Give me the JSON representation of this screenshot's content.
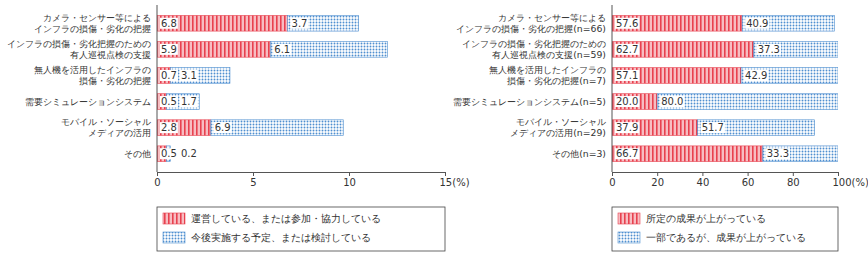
{
  "chart_data": [
    {
      "type": "bar",
      "orientation": "horizontal",
      "stacked": true,
      "data_labels": true,
      "grid": false,
      "legend": "bottom",
      "categories": [
        "カメラ・センサー等による\nインフラの損傷・劣化の把握",
        "インフラの損傷・劣化把握のための\n有人巡視点検の支援",
        "無人機を活用したインフラの\n損傷・劣化の把握",
        "需要シミュレーションシステム",
        "モバイル・ソーシャル\nメディアの活用",
        "その他"
      ],
      "series": [
        {
          "name": "運営している、または参加・協力している",
          "color": "#e8414f",
          "values": [
            6.8,
            5.9,
            0.7,
            0.5,
            2.8,
            0.5
          ]
        },
        {
          "name": "今後実施する予定、または検討している",
          "color": "#4f8fd0",
          "values": [
            3.7,
            6.1,
            3.1,
            1.7,
            6.9,
            0.2
          ]
        }
      ],
      "xlim": [
        0,
        15
      ],
      "xticks": [
        0,
        5,
        10,
        {
          "value": 15,
          "label": "15(%)"
        }
      ]
    },
    {
      "type": "bar",
      "orientation": "horizontal",
      "stacked": true,
      "data_labels": true,
      "grid": false,
      "legend": "bottom",
      "categories": [
        "カメラ・センサー等による\nインフラの損傷・劣化の把握(n=66)",
        "インフラの損傷・劣化把握のための\n有人巡視点検の支援(n=59)",
        "無人機を活用したインフラの\n損傷・劣化の把握(n=7)",
        "需要シミュレーションシステム(n=5)",
        "モバイル・ソーシャル\nメディアの活用(n=29)",
        "その他(n=3)"
      ],
      "series": [
        {
          "name": "所定の成果が上がっている",
          "color": "#e8414f",
          "values": [
            57.6,
            62.7,
            57.1,
            20.0,
            37.9,
            66.7
          ],
          "value_labels": [
            "57.6",
            "62.7",
            "57.1",
            "20.0",
            "37.9",
            "66.7"
          ]
        },
        {
          "name": "一部であるが、成果が上がっている",
          "color": "#4f8fd0",
          "values": [
            40.9,
            37.3,
            42.9,
            80.0,
            51.7,
            33.3
          ],
          "value_labels": [
            "40.9",
            "37.3",
            "42.9",
            "80.0",
            "51.7",
            "33.3"
          ]
        }
      ],
      "xlim": [
        0,
        100
      ],
      "xticks": [
        0,
        20,
        40,
        60,
        80,
        {
          "value": 100,
          "label": "100(%)"
        }
      ]
    }
  ]
}
